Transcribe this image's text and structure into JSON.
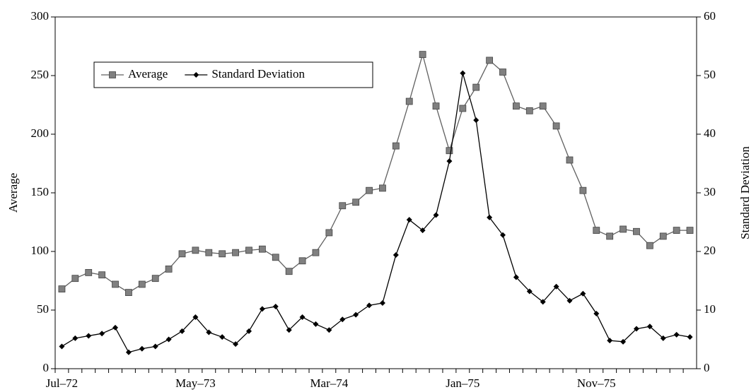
{
  "chart_data": {
    "type": "line",
    "categories": [
      "Jul–72",
      null,
      null,
      null,
      null,
      null,
      null,
      null,
      null,
      null,
      "May–73",
      null,
      null,
      null,
      null,
      null,
      null,
      null,
      null,
      null,
      "Mar–74",
      null,
      null,
      null,
      null,
      null,
      null,
      null,
      null,
      null,
      "Jan–75",
      null,
      null,
      null,
      null,
      null,
      null,
      null,
      null,
      null,
      "Nov–75",
      null,
      null,
      null,
      null,
      null,
      null,
      null
    ],
    "series": [
      {
        "name": "Average",
        "color": "#808080",
        "line_color": "#606060",
        "marker": "square",
        "values": [
          68,
          77,
          82,
          80,
          72,
          65,
          72,
          77,
          85,
          98,
          101,
          99,
          98,
          99,
          101,
          102,
          95,
          83,
          92,
          99,
          116,
          139,
          142,
          152,
          154,
          190,
          228,
          268,
          224,
          186,
          222,
          240,
          263,
          253,
          224,
          220,
          224,
          207,
          178,
          152,
          118,
          113,
          119,
          117,
          105,
          113,
          118,
          118
        ]
      },
      {
        "name": "Standard Deviation",
        "color": "#000000",
        "line_color": "#000000",
        "marker": "diamond",
        "axis": "y2",
        "values": [
          3.8,
          5.2,
          5.6,
          6,
          7,
          2.8,
          3.4,
          3.8,
          5,
          6.4,
          8.8,
          6.2,
          5.4,
          4.2,
          6.4,
          10.2,
          10.6,
          6.6,
          8.8,
          7.6,
          6.6,
          8.4,
          9.2,
          10.8,
          11.2,
          19.4,
          25.4,
          23.6,
          26.2,
          35.4,
          50.4,
          42.4,
          25.8,
          22.8,
          15.6,
          13.2,
          11.4,
          14,
          11.6,
          12.8,
          9.4,
          4.8,
          4.6,
          6.8,
          7.2,
          5.2,
          5.8,
          5.4
        ]
      }
    ],
    "y_label": "Average",
    "y2_label": "Standard Deviation",
    "ylim": [
      0,
      300
    ],
    "yticks": [
      0,
      50,
      100,
      150,
      200,
      250,
      300
    ],
    "y2lim": [
      0,
      60
    ],
    "y2ticks": [
      0,
      10,
      20,
      30,
      40,
      50,
      60
    ],
    "grid": false,
    "legend": "upper left"
  }
}
